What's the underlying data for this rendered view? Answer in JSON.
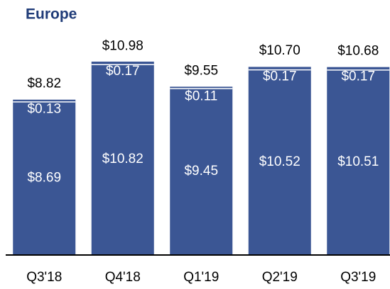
{
  "chart_data": {
    "type": "stacked_bar",
    "title": "Europe",
    "categories": [
      "Q3'18",
      "Q4'18",
      "Q1'19",
      "Q2'19",
      "Q3'19"
    ],
    "series": [
      {
        "color": "#3b5694",
        "values": [
          8.69,
          10.82,
          9.45,
          10.52,
          10.51
        ],
        "value_labels": [
          "$8.69",
          "$10.82",
          "$9.45",
          "$10.52",
          "$10.51"
        ]
      },
      {
        "color": "#3b5694",
        "values": [
          0.13,
          0.17,
          0.11,
          0.17,
          0.17
        ],
        "value_labels": [
          "$0.13",
          "$0.17",
          "$0.11",
          "$0.17",
          "$0.17"
        ]
      }
    ],
    "totals": [
      8.82,
      10.98,
      9.55,
      10.7,
      10.68
    ],
    "total_labels": [
      "$8.82",
      "$10.98",
      "$9.55",
      "$10.70",
      "$10.68"
    ],
    "ylim": [
      0,
      12
    ]
  }
}
